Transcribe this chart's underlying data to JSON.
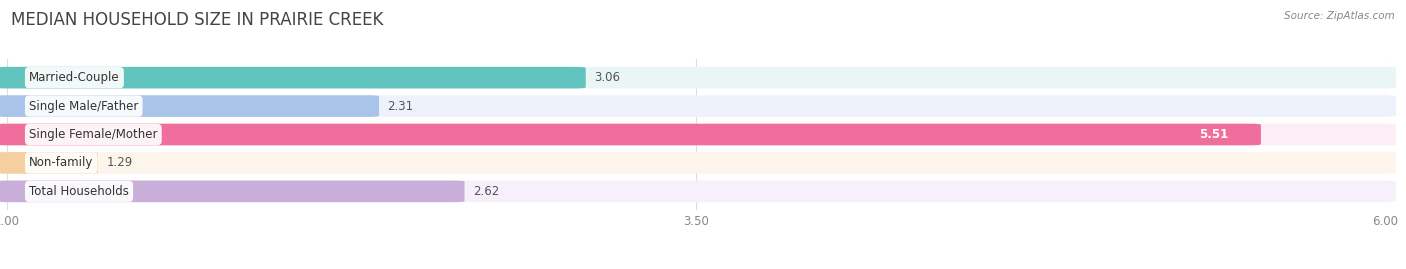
{
  "title": "MEDIAN HOUSEHOLD SIZE IN PRAIRIE CREEK",
  "source": "Source: ZipAtlas.com",
  "categories": [
    "Married-Couple",
    "Single Male/Father",
    "Single Female/Mother",
    "Non-family",
    "Total Households"
  ],
  "values": [
    3.06,
    2.31,
    5.51,
    1.29,
    2.62
  ],
  "bar_colors": [
    "#62c4be",
    "#a8c4e8",
    "#f06e9b",
    "#f5cfa0",
    "#c8aed8"
  ],
  "bar_bg_colors": [
    "#eaf6f5",
    "#edf2fb",
    "#fdeef5",
    "#fdf5ec",
    "#f5f0fa"
  ],
  "value_white": [
    false,
    false,
    true,
    false,
    false
  ],
  "xlim": [
    1.0,
    6.0
  ],
  "xticks": [
    1.0,
    3.5,
    6.0
  ],
  "background_color": "#ffffff",
  "title_fontsize": 12,
  "label_fontsize": 8.5,
  "value_fontsize": 8.5
}
